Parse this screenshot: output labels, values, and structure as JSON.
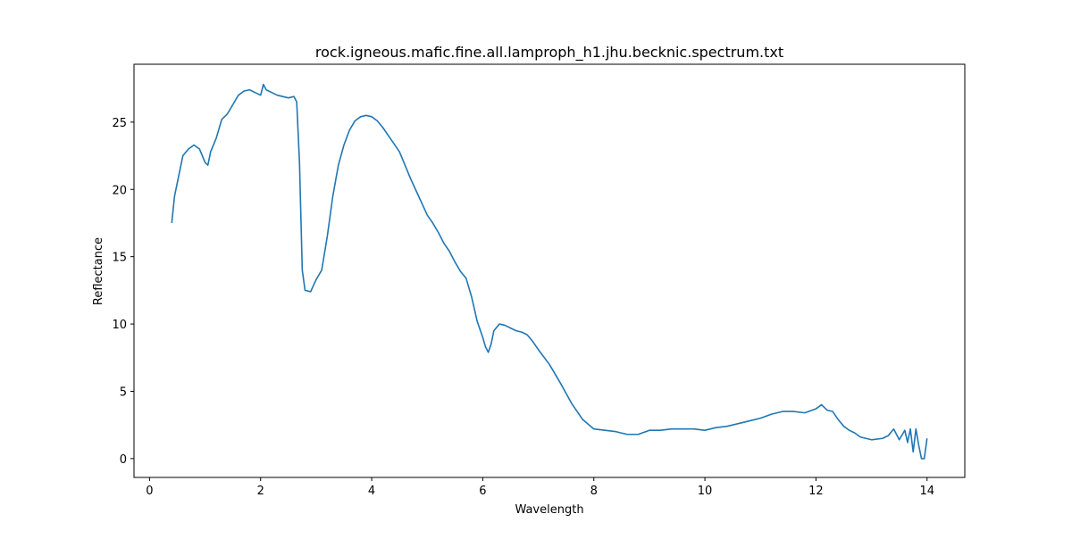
{
  "chart_data": {
    "type": "line",
    "title": "rock.igneous.mafic.fine.all.lamproph_h1.jhu.becknic.spectrum.txt",
    "x_label": "Wavelength",
    "y_label": "Reflectance",
    "x": [
      0.4,
      0.45,
      0.5,
      0.6,
      0.7,
      0.8,
      0.9,
      1.0,
      1.05,
      1.1,
      1.2,
      1.3,
      1.4,
      1.5,
      1.6,
      1.7,
      1.8,
      1.9,
      2.0,
      2.05,
      2.1,
      2.2,
      2.3,
      2.4,
      2.5,
      2.6,
      2.65,
      2.7,
      2.75,
      2.8,
      2.9,
      3.0,
      3.1,
      3.2,
      3.3,
      3.4,
      3.5,
      3.6,
      3.7,
      3.8,
      3.9,
      4.0,
      4.1,
      4.2,
      4.3,
      4.4,
      4.5,
      4.6,
      4.7,
      4.8,
      4.9,
      5.0,
      5.1,
      5.2,
      5.3,
      5.4,
      5.5,
      5.6,
      5.7,
      5.8,
      5.9,
      6.0,
      6.05,
      6.1,
      6.15,
      6.2,
      6.3,
      6.4,
      6.5,
      6.6,
      6.7,
      6.8,
      6.9,
      7.0,
      7.2,
      7.4,
      7.6,
      7.8,
      8.0,
      8.2,
      8.4,
      8.6,
      8.8,
      9.0,
      9.2,
      9.4,
      9.6,
      9.8,
      10.0,
      10.2,
      10.4,
      10.6,
      10.8,
      11.0,
      11.2,
      11.4,
      11.6,
      11.8,
      12.0,
      12.1,
      12.2,
      12.3,
      12.4,
      12.5,
      12.6,
      12.7,
      12.8,
      13.0,
      13.2,
      13.3,
      13.4,
      13.5,
      13.6,
      13.65,
      13.7,
      13.75,
      13.8,
      13.85,
      13.9,
      13.95,
      14.0
    ],
    "series": [
      {
        "name": "spectrum",
        "color": "#1f77b4",
        "values": [
          17.5,
          19.5,
          20.5,
          22.5,
          23.0,
          23.3,
          23.0,
          22.0,
          21.8,
          22.8,
          23.8,
          25.2,
          25.6,
          26.3,
          27.0,
          27.3,
          27.4,
          27.2,
          27.0,
          27.8,
          27.4,
          27.2,
          27.0,
          26.9,
          26.8,
          26.9,
          26.5,
          22,
          14,
          12.5,
          12.4,
          13.3,
          14.0,
          16.5,
          19.5,
          21.8,
          23.3,
          24.4,
          25.1,
          25.4,
          25.5,
          25.4,
          25.1,
          24.6,
          24.0,
          23.4,
          22.8,
          21.8,
          20.8,
          19.9,
          19.0,
          18.1,
          17.5,
          16.8,
          16.0,
          15.4,
          14.6,
          13.9,
          13.4,
          12.0,
          10.2,
          9.0,
          8.3,
          7.9,
          8.5,
          9.5,
          10.0,
          9.9,
          9.7,
          9.5,
          9.4,
          9.2,
          8.7,
          8.1,
          7.0,
          5.6,
          4.1,
          2.9,
          2.2,
          2.1,
          2.0,
          1.8,
          1.8,
          2.1,
          2.1,
          2.2,
          2.2,
          2.2,
          2.1,
          2.3,
          2.4,
          2.6,
          2.8,
          3.0,
          3.3,
          3.5,
          3.5,
          3.4,
          3.7,
          4.0,
          3.6,
          3.5,
          2.9,
          2.4,
          2.1,
          1.9,
          1.6,
          1.4,
          1.5,
          1.7,
          2.2,
          1.4,
          2.1,
          1.2,
          2.2,
          0.5,
          2.2,
          1.0,
          0,
          0,
          1.5
        ]
      }
    ],
    "xlim": [
      -0.28,
      14.68
    ],
    "ylim": [
      -1.4,
      29.3
    ],
    "xticks": [
      0,
      2,
      4,
      6,
      8,
      10,
      12,
      14
    ],
    "yticks": [
      0,
      5,
      10,
      15,
      20,
      25
    ],
    "grid": false
  }
}
